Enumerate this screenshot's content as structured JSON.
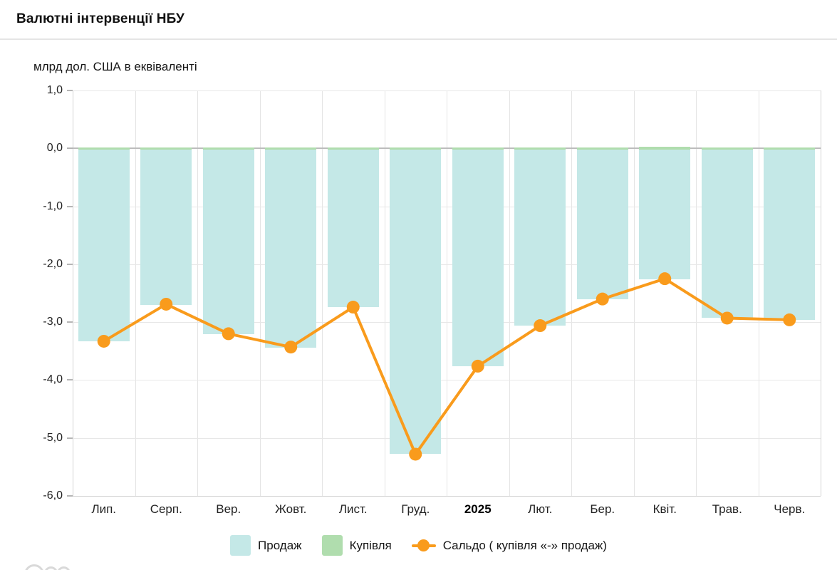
{
  "header": {
    "title": "Валютні інтервенції НБУ"
  },
  "chart_data": {
    "type": "bar+line",
    "title": "Валютні інтервенції НБУ",
    "unit_label": "млрд дол. США в еквіваленті",
    "categories": [
      {
        "label": "Лип.",
        "bold": false
      },
      {
        "label": "Серп.",
        "bold": false
      },
      {
        "label": "Вер.",
        "bold": false
      },
      {
        "label": "Жовт.",
        "bold": false
      },
      {
        "label": "Лист.",
        "bold": false
      },
      {
        "label": "Груд.",
        "bold": false
      },
      {
        "label": "2025",
        "bold": true
      },
      {
        "label": "Лют.",
        "bold": false
      },
      {
        "label": "Бер.",
        "bold": false
      },
      {
        "label": "Квіт.",
        "bold": false
      },
      {
        "label": "Трав.",
        "bold": false
      },
      {
        "label": "Черв.",
        "bold": false
      }
    ],
    "series": [
      {
        "name": "Продаж",
        "type": "bar",
        "color": "#c4e8e7",
        "values": [
          -3.33,
          -2.7,
          -3.21,
          -3.44,
          -2.74,
          -5.28,
          -3.76,
          -3.06,
          -2.61,
          -2.26,
          -2.93,
          -2.96
        ]
      },
      {
        "name": "Купівля",
        "type": "bar",
        "color": "#b0ddae",
        "values": [
          0.01,
          0.01,
          0.01,
          0.01,
          0.01,
          0.01,
          0.01,
          0.01,
          0.01,
          0.03,
          0.01,
          0.01
        ]
      },
      {
        "name": "Сальдо ( купівля «-» продаж)",
        "type": "line",
        "color": "#f99b1c",
        "values": [
          -3.33,
          -2.69,
          -3.2,
          -3.43,
          -2.74,
          -5.28,
          -3.76,
          -3.06,
          -2.6,
          -2.25,
          -2.93,
          -2.96
        ]
      }
    ],
    "ylim": [
      -6,
      1
    ],
    "ytick_labels": [
      "1,0",
      "0,0",
      "-1,0",
      "-2,0",
      "-3,0",
      "-4,0",
      "-5,0",
      "-6,0"
    ],
    "grid": true,
    "legend_position": "bottom"
  }
}
